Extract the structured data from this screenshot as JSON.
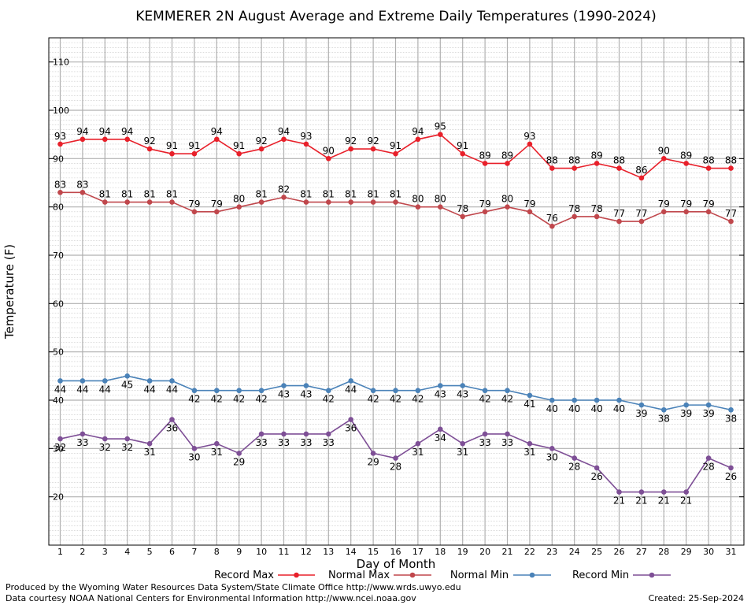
{
  "chart_data": {
    "type": "line",
    "title": "KEMMERER 2N August Average and Extreme Daily Temperatures (1990-2024)",
    "xlabel": "Day of Month",
    "ylabel": "Temperature (F)",
    "ylim": [
      10,
      115
    ],
    "yticks": [
      20,
      30,
      40,
      50,
      60,
      70,
      80,
      90,
      100,
      110
    ],
    "grid": true,
    "x": [
      1,
      2,
      3,
      4,
      5,
      6,
      7,
      8,
      9,
      10,
      11,
      12,
      13,
      14,
      15,
      16,
      17,
      18,
      19,
      20,
      21,
      22,
      23,
      24,
      25,
      26,
      27,
      28,
      29,
      30,
      31
    ],
    "series": [
      {
        "name": "Record Max",
        "color": "#e8202a",
        "values": [
          93,
          94,
          94,
          94,
          92,
          91,
          91,
          94,
          91,
          92,
          94,
          93,
          90,
          92,
          92,
          91,
          94,
          95,
          91,
          89,
          89,
          93,
          88,
          88,
          89,
          88,
          86,
          90,
          89,
          88,
          88
        ]
      },
      {
        "name": "Normal Max",
        "color": "#c0474c",
        "values": [
          83,
          83,
          81,
          81,
          81,
          81,
          79,
          79,
          80,
          81,
          82,
          81,
          81,
          81,
          81,
          81,
          80,
          80,
          78,
          79,
          80,
          79,
          76,
          78,
          78,
          77,
          77,
          79,
          79,
          79,
          77
        ]
      },
      {
        "name": "Normal Min",
        "color": "#4a82b8",
        "values": [
          44,
          44,
          44,
          45,
          44,
          44,
          42,
          42,
          42,
          42,
          43,
          43,
          42,
          44,
          42,
          42,
          42,
          43,
          43,
          42,
          42,
          41,
          40,
          40,
          40,
          40,
          39,
          38,
          39,
          39,
          38
        ]
      },
      {
        "name": "Record Min",
        "color": "#7e4f96",
        "values": [
          32,
          33,
          32,
          32,
          31,
          36,
          30,
          31,
          29,
          33,
          33,
          33,
          33,
          36,
          29,
          28,
          31,
          34,
          31,
          33,
          33,
          31,
          30,
          28,
          26,
          21,
          21,
          21,
          21,
          28,
          26
        ]
      }
    ],
    "legend": [
      "Record Max",
      "Normal Max",
      "Normal Min",
      "Record Min"
    ]
  },
  "footer": {
    "produced_by": "Produced by the Wyoming Water Resources Data System/State Climate Office http://www.wrds.uwyo.edu",
    "data_courtesy": "Data courtesy NOAA National Centers for Environmental Information http://www.ncei.noaa.gov",
    "created": "Created:  25-Sep-2024"
  }
}
